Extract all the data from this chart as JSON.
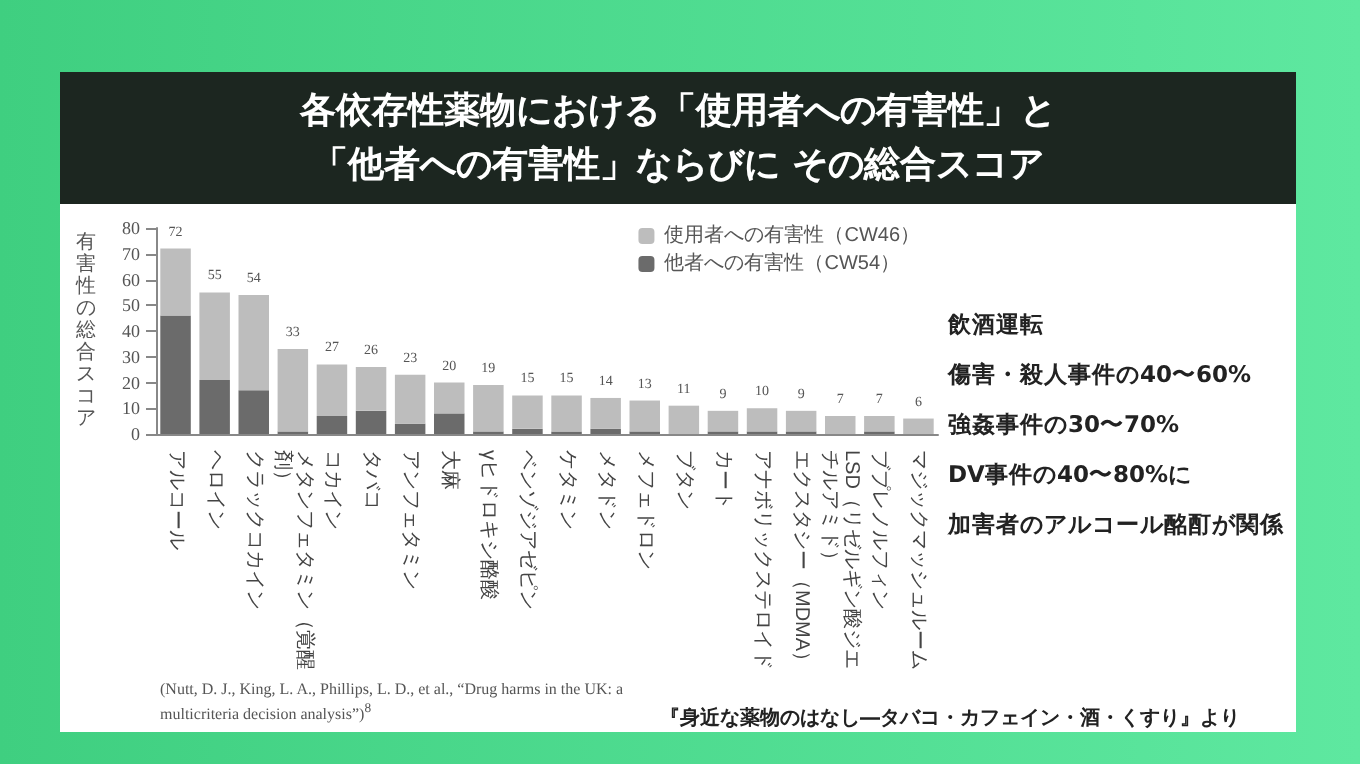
{
  "chart_data": {
    "type": "bar",
    "title": "各依存性薬物における「使用者への有害性」と「他者への有害性」ならびに その総合スコア",
    "ylabel": "有害性の総合スコア",
    "categories": [
      "アルコール",
      "ヘロイン",
      "クラックコカイン",
      "メタンフェタミン（覚醒剤）",
      "コカイン",
      "タバコ",
      "アンフェタミン",
      "大麻",
      "γヒドロキシ酪酸",
      "ベンゾジアゼピン",
      "ケタミン",
      "メタドン",
      "メフェドロン",
      "ブタン",
      "カート",
      "アナボリックステロイド",
      "エクスタシー（MDMA）",
      "LSD（リゼルギン酸ジエチルアミド）",
      "ブプレノルフィン",
      "マジックマッシュルーム"
    ],
    "stacked": true,
    "series": [
      {
        "name": "他者への有害性（CW54）",
        "color": "#6b6b6b",
        "values": [
          46,
          21,
          17,
          1,
          7,
          9,
          4,
          8,
          1,
          2,
          1,
          2,
          1,
          0,
          1,
          1,
          1,
          0,
          1,
          0
        ]
      },
      {
        "name": "使用者への有害性（CW46）",
        "color": "#bdbdbd",
        "values": [
          26,
          34,
          37,
          32,
          20,
          17,
          19,
          12,
          18,
          13,
          14,
          12,
          12,
          11,
          8,
          9,
          8,
          7,
          6,
          6
        ]
      }
    ],
    "totals": [
      "72",
      "55",
      "54",
      "33",
      "27",
      "26",
      "23",
      "20",
      "19",
      "15",
      "15",
      "14",
      "13",
      "11",
      "9",
      "10",
      "9",
      "7",
      "7",
      "6"
    ],
    "ylim": [
      0,
      80
    ],
    "yticks": [
      0,
      10,
      20,
      30,
      40,
      50,
      60,
      70,
      80
    ],
    "grid": false,
    "legend": "top right",
    "annotations": [
      "飲酒運転",
      "傷害・殺人事件の40〜60%",
      "強姦事件の30〜70%",
      "DV事件の40〜80%に",
      "加害者のアルコール酩酊が関係",
      "(Nutt, D. J., King, L. A., Phillips, L. D., et al., “Drug harms in the UK: a multicriteria decision analysis”)$^{8}$",
      "『身近な薬物のはなし―タバコ・カフェイン・酒・くすり』より"
    ]
  }
}
